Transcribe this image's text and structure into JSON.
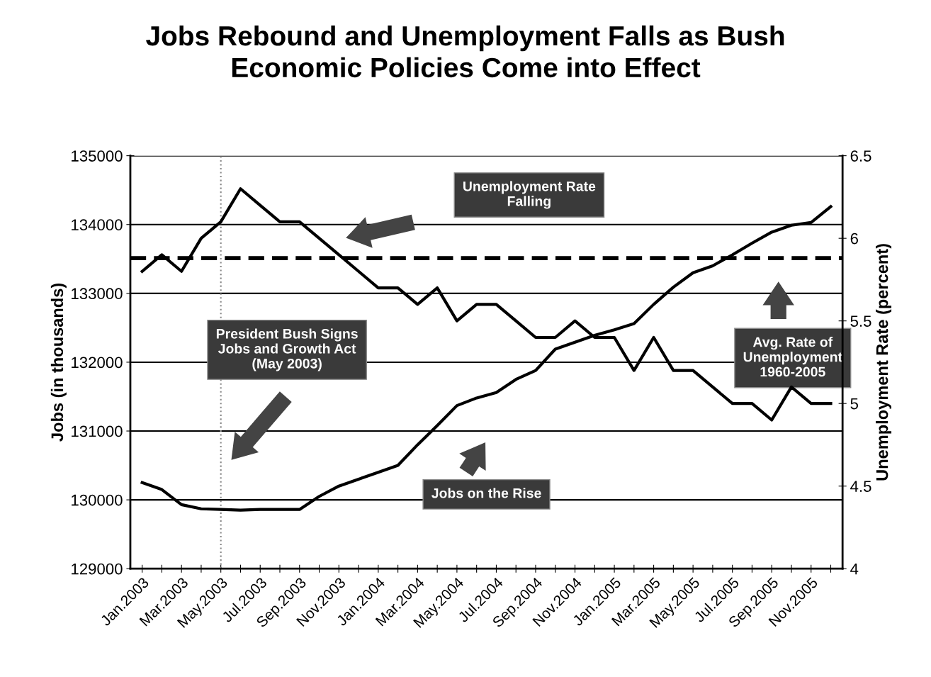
{
  "chart_data": {
    "type": "line",
    "title": "Jobs Rebound and Unemployment Falls as Bush\nEconomic Policies Come into Effect",
    "ylabel": "Jobs (in thousands)",
    "y2label": "Unemployment Rate (percent)",
    "categories": [
      "Jan.2003",
      null,
      "Mar.2003",
      null,
      "May.2003",
      null,
      "Jul.2003",
      null,
      "Sep.2003",
      null,
      "Nov.2003",
      null,
      "Jan.2004",
      null,
      "Mar.2004",
      null,
      "May.2004",
      null,
      "Jul.2004",
      null,
      "Sep.2004",
      null,
      "Nov.2004",
      null,
      "Jan.2005",
      null,
      "Mar.2005",
      null,
      "May.2005",
      null,
      "Jul.2005",
      null,
      "Sep.2005",
      null,
      "Nov.2005",
      null
    ],
    "series": [
      {
        "color": "#000000",
        "values": [
          130250,
          130150,
          129930,
          129870,
          129860,
          129850,
          129860,
          129860,
          129860,
          130050,
          130200,
          130300,
          130400,
          130500,
          130800,
          131080,
          131370,
          131480,
          131560,
          131750,
          131880,
          132190,
          132290,
          132390,
          132470,
          132560,
          132840,
          133090,
          133300,
          133400,
          133560,
          133730,
          133890,
          133990,
          134030,
          134260
        ]
      },
      {
        "color": "#000000",
        "axis": "y2",
        "values": [
          5.8,
          5.9,
          5.8,
          6.0,
          6.1,
          6.3,
          6.2,
          6.1,
          6.1,
          6.0,
          5.9,
          5.8,
          5.7,
          5.7,
          5.6,
          5.7,
          5.5,
          5.6,
          5.6,
          5.5,
          5.4,
          5.4,
          5.5,
          5.4,
          5.4,
          5.2,
          5.4,
          5.2,
          5.2,
          5.1,
          5.0,
          5.0,
          4.9,
          5.1,
          5.0,
          5.0
        ]
      }
    ],
    "ylim": [
      129000,
      135000
    ],
    "yticks": [
      129000,
      130000,
      131000,
      132000,
      133000,
      134000,
      135000
    ],
    "y2lim": [
      4,
      6.5
    ],
    "y2ticks": [
      4,
      4.5,
      5,
      5.5,
      6,
      6.5
    ],
    "ref_lines": [
      {
        "axis": "y2",
        "value": 5.88,
        "line_style": "dashed",
        "color": "#000000"
      },
      {
        "axis": "x",
        "value": "May.2003",
        "line_style": "dotted",
        "color": "#888888"
      }
    ],
    "annotations": [
      "Unemployment Rate Falling",
      "President Bush Signs Jobs and Growth Act (May 2003)",
      "Jobs on the Rise",
      "Avg. Rate of Unemployment 1960-2005"
    ],
    "grid": "y",
    "marker": "none",
    "line_style": "solid"
  }
}
